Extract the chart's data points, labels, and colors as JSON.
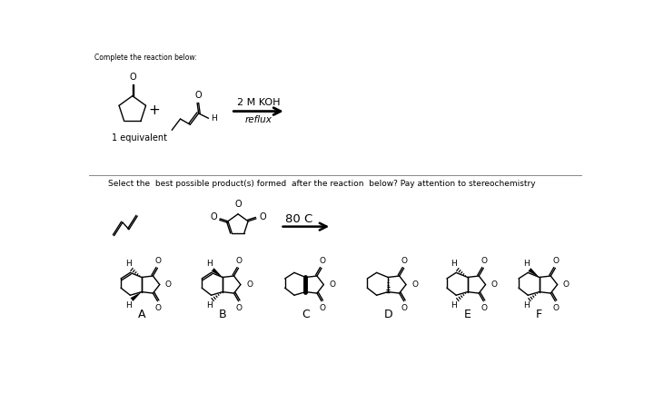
{
  "bg_color": "#ffffff",
  "top_label": "Complete the reaction below:",
  "reagent_top": "2 M KOH",
  "reagent_bottom": "reflux",
  "label_1eq": "1 equivalent",
  "section2_label": "Select the  best possible product(s) formed  after the reaction  below? Pay attention to stereochemistry",
  "temp_label": "80 C",
  "product_labels": [
    "A",
    "B",
    "C",
    "D",
    "E",
    "F"
  ],
  "line_color": "#000000",
  "lw": 1.0,
  "lw_bold": 3.5,
  "font_size_label": 6.5,
  "font_size_atom": 7.0,
  "font_size_product_label": 9
}
